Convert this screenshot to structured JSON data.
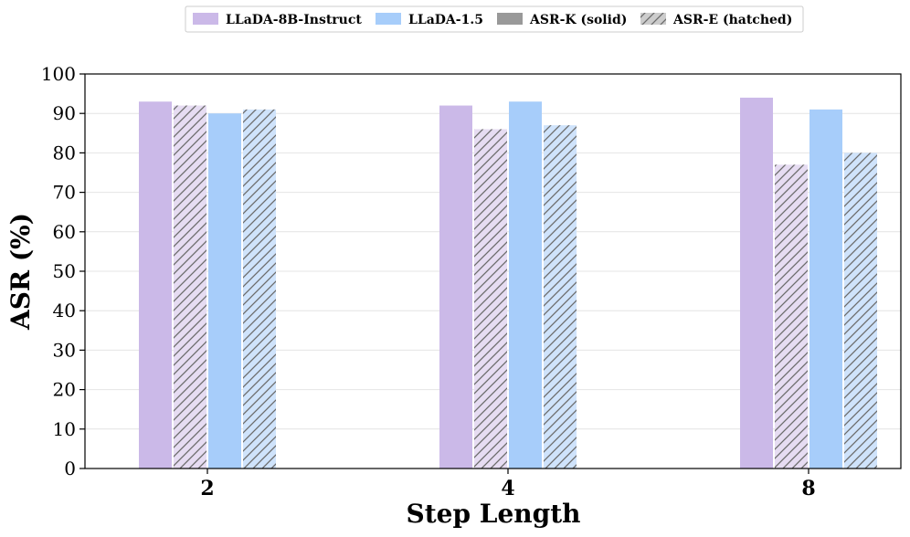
{
  "chart_data": {
    "type": "bar",
    "title": "",
    "xlabel": "Step Length",
    "ylabel": "ASR (%)",
    "categories": [
      "2",
      "4",
      "8"
    ],
    "ylim": [
      0,
      100
    ],
    "yticks": [
      "0",
      "10",
      "20",
      "30",
      "40",
      "50",
      "60",
      "70",
      "80",
      "90",
      "100"
    ],
    "grid": "horizontal",
    "legend_position": "top-center",
    "legend": [
      {
        "label": "LLaDA-8B-Instruct",
        "style": "solid",
        "color": "#cbb9e8"
      },
      {
        "label": "LLaDA-1.5",
        "style": "solid",
        "color": "#a7cdfa"
      },
      {
        "label": "ASR-K (solid)",
        "style": "solid",
        "color": "#999999"
      },
      {
        "label": "ASR-E (hatched)",
        "style": "hatched",
        "color": "#cccccc"
      }
    ],
    "series": [
      {
        "model": "LLaDA-8B-Instruct",
        "metric": "ASR-K",
        "hatched": false,
        "color": "#cbb9e8",
        "values": [
          93,
          92,
          94
        ]
      },
      {
        "model": "LLaDA-8B-Instruct",
        "metric": "ASR-E",
        "hatched": true,
        "color": "#e6dcf2",
        "values": [
          92,
          86,
          77
        ]
      },
      {
        "model": "LLaDA-1.5",
        "metric": "ASR-K",
        "hatched": false,
        "color": "#a7cdfa",
        "values": [
          90,
          93,
          91
        ]
      },
      {
        "model": "LLaDA-1.5",
        "metric": "ASR-E",
        "hatched": true,
        "color": "#cfe3fb",
        "values": [
          91,
          87,
          80
        ]
      }
    ]
  }
}
